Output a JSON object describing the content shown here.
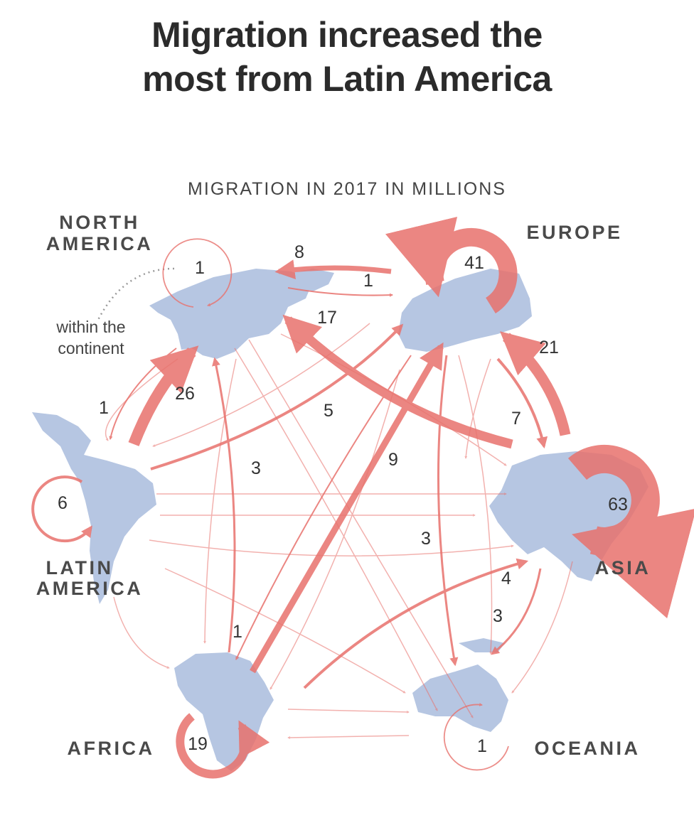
{
  "title": {
    "line1": "Migration increased the",
    "line2": "most from Latin America"
  },
  "subtitle": "MIGRATION IN 2017 IN MILLIONS",
  "note": {
    "line1": "within the",
    "line2": "continent"
  },
  "regions": {
    "north_america": [
      "NORTH",
      "AMERICA"
    ],
    "europe": [
      "EUROPE"
    ],
    "latin_america": [
      "LATIN",
      "AMERICA"
    ],
    "asia": [
      "ASIA"
    ],
    "africa": [
      "AFRICA"
    ],
    "oceania": [
      "OCEANIA"
    ]
  },
  "within_continent": {
    "north_america": "1",
    "europe": "41",
    "latin_america": "6",
    "asia": "63",
    "africa": "19",
    "oceania": "1"
  },
  "flow_labels": {
    "europe_to_north_america": "8",
    "north_america_to_europe": "1",
    "asia_to_north_america": "17",
    "asia_to_europe": "21",
    "north_america_to_latin_america": "1",
    "latin_america_to_north_america": "26",
    "latin_america_to_europe": "5",
    "europe_to_asia": "7",
    "africa_to_north_america": "3",
    "africa_to_europe": "9",
    "europe_to_oceania": "3",
    "africa_to_asia": "4",
    "asia_to_oceania": "3",
    "europe_to_africa": "1"
  },
  "colors": {
    "arrow": "#e8726d",
    "land": "#b6c6e2",
    "text": "#2b2b2b"
  }
}
